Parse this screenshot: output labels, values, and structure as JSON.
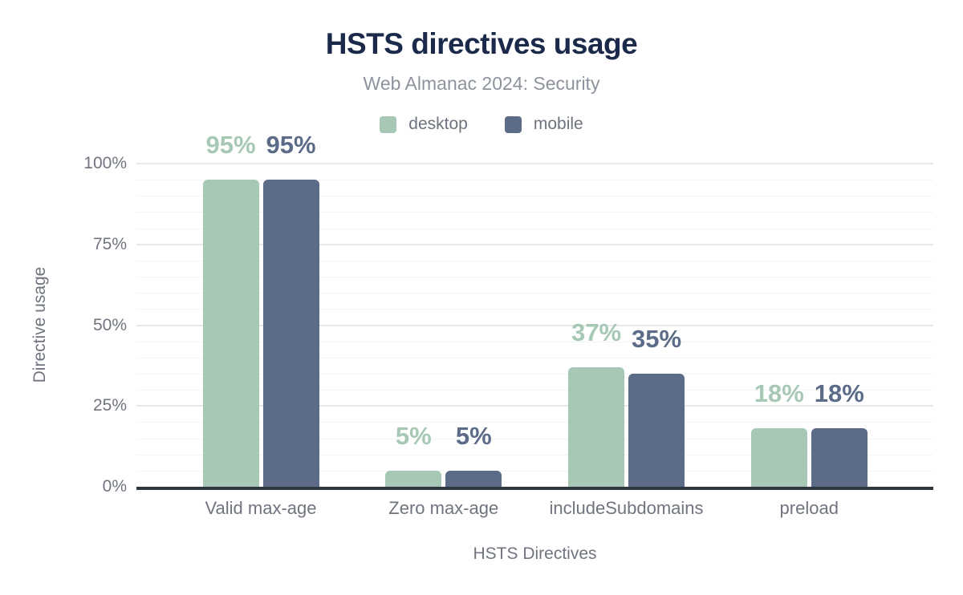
{
  "chart_data": {
    "type": "bar",
    "title": "HSTS directives usage",
    "subtitle": "Web Almanac 2024: Security",
    "xlabel": "HSTS Directives",
    "ylabel": "Directive usage",
    "categories": [
      "Valid max-age",
      "Zero max-age",
      "includeSubdomains",
      "preload"
    ],
    "series": [
      {
        "name": "desktop",
        "color": "#a6c8b5",
        "values": [
          95,
          5,
          37,
          18
        ]
      },
      {
        "name": "mobile",
        "color": "#5c6c88",
        "values": [
          95,
          5,
          35,
          18
        ]
      }
    ],
    "value_label_suffix": "%",
    "ylim": [
      0,
      100
    ],
    "yticks": [
      0,
      25,
      50,
      75,
      100
    ],
    "ytick_labels": [
      "0%",
      "25%",
      "50%",
      "75%",
      "100%"
    ],
    "grid": {
      "minor_step": 5,
      "major_step": 25,
      "visible": true
    },
    "legend_position": "top"
  },
  "colors": {
    "title": "#1b2a4a",
    "subtitle": "#8d939d",
    "axis_text": "#6f747e",
    "axis_line": "#30363d",
    "grid_major": "#e7e9eb",
    "grid_minor": "#f3f4f5",
    "background": "#ffffff"
  }
}
